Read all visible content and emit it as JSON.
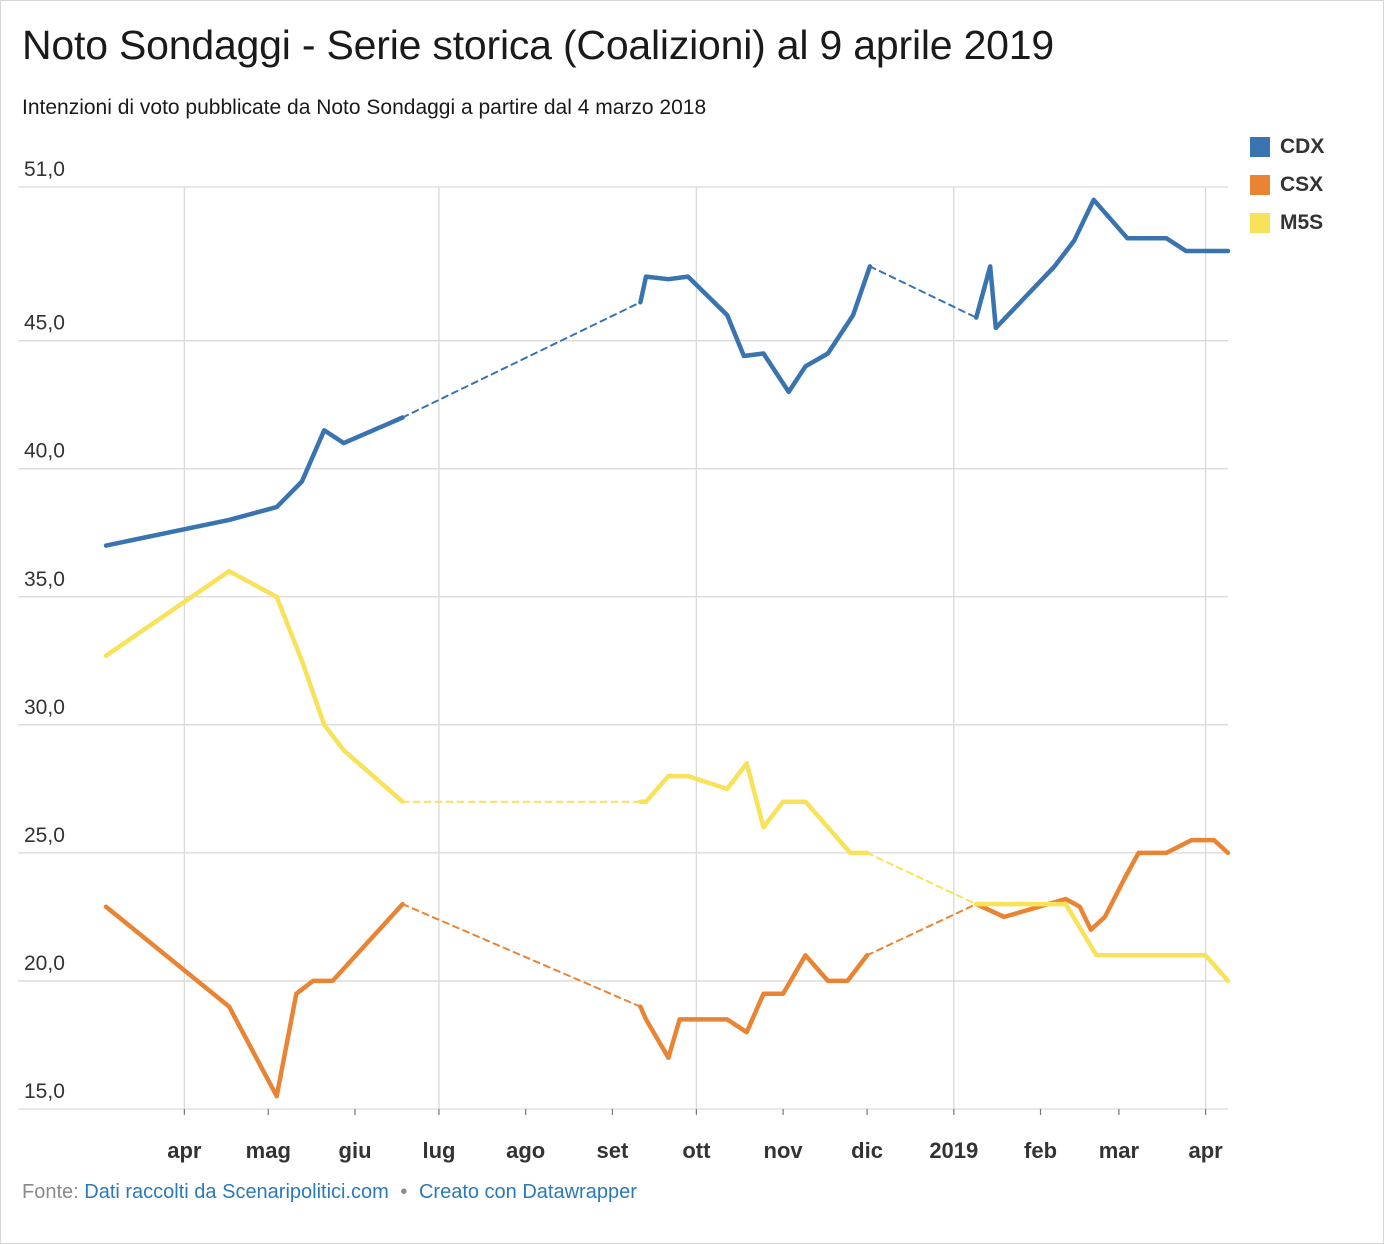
{
  "header": {
    "title": "Noto Sondaggi - Serie storica (Coalizioni) al 9 aprile 2019",
    "subtitle": "Intenzioni di voto pubblicate da Noto Sondaggi a partire dal 4 marzo 2018"
  },
  "footer": {
    "source_prefix": "Fonte:",
    "source_link": "Dati raccolti da Scenaripolitici.com",
    "separator": "•",
    "made_with_link": "Creato con Datawrapper"
  },
  "legend": [
    {
      "label": "CDX",
      "color": "#3a74b0"
    },
    {
      "label": "CSX",
      "color": "#ea8435"
    },
    {
      "label": "M5S",
      "color": "#f7e25a"
    }
  ],
  "chart_data": {
    "type": "line",
    "title": "Noto Sondaggi - Serie storica (Coalizioni) al 9 aprile 2019",
    "xlabel": "",
    "ylabel": "",
    "x_range": [
      "2018-03-04",
      "2019-04-09"
    ],
    "ylim": [
      15,
      51
    ],
    "y_ticks": [
      15,
      20,
      25,
      30,
      35,
      40,
      45,
      51
    ],
    "y_tick_labels": [
      "15,0",
      "20,0",
      "25,0",
      "30,0",
      "35,0",
      "40,0",
      "45,0",
      "51,0"
    ],
    "x_ticks": [
      {
        "label": "apr",
        "date": "2018-04-01"
      },
      {
        "label": "mag",
        "date": "2018-05-01"
      },
      {
        "label": "giu",
        "date": "2018-06-01"
      },
      {
        "label": "lug",
        "date": "2018-07-01"
      },
      {
        "label": "ago",
        "date": "2018-08-01"
      },
      {
        "label": "set",
        "date": "2018-09-01"
      },
      {
        "label": "ott",
        "date": "2018-10-01"
      },
      {
        "label": "nov",
        "date": "2018-11-01"
      },
      {
        "label": "dic",
        "date": "2018-12-01"
      },
      {
        "label": "2019",
        "date": "2019-01-01"
      },
      {
        "label": "feb",
        "date": "2019-02-01"
      },
      {
        "label": "mar",
        "date": "2019-03-01"
      },
      {
        "label": "apr",
        "date": "2019-04-01"
      }
    ],
    "grid": true,
    "legend_position": "top-right",
    "series": [
      {
        "name": "CDX",
        "color": "#3a74b0",
        "points": [
          [
            "2018-03-04",
            37
          ],
          [
            "2018-04-17",
            38
          ],
          [
            "2018-05-04",
            38.5
          ],
          [
            "2018-05-13",
            39.5
          ],
          [
            "2018-05-21",
            41.5
          ],
          [
            "2018-05-28",
            41
          ],
          [
            "2018-06-18",
            42
          ],
          [
            "2018-09-11",
            46.5
          ],
          [
            "2018-09-13",
            47.5
          ],
          [
            "2018-09-21",
            47.4
          ],
          [
            "2018-09-28",
            47.5
          ],
          [
            "2018-10-12",
            46
          ],
          [
            "2018-10-18",
            44.4
          ],
          [
            "2018-10-25",
            44.5
          ],
          [
            "2018-11-03",
            43
          ],
          [
            "2018-11-09",
            44
          ],
          [
            "2018-11-17",
            44.5
          ],
          [
            "2018-11-26",
            46
          ],
          [
            "2018-12-02",
            47.9
          ],
          [
            "2019-01-09",
            45.9
          ],
          [
            "2019-01-14",
            47.9
          ],
          [
            "2019-01-16",
            45.5
          ],
          [
            "2019-02-06",
            47.9
          ],
          [
            "2019-02-13",
            48.9
          ],
          [
            "2019-02-20",
            50.5
          ],
          [
            "2019-03-04",
            49
          ],
          [
            "2019-03-18",
            49
          ],
          [
            "2019-03-25",
            48.5
          ],
          [
            "2019-04-09",
            48.5
          ]
        ],
        "dashed_gaps": [
          [
            "2018-06-18",
            "2018-09-11"
          ],
          [
            "2018-12-02",
            "2019-01-09"
          ]
        ]
      },
      {
        "name": "CSX",
        "color": "#ea8435",
        "points": [
          [
            "2018-03-04",
            22.9
          ],
          [
            "2018-04-17",
            19
          ],
          [
            "2018-05-04",
            15.5
          ],
          [
            "2018-05-11",
            19.5
          ],
          [
            "2018-05-17",
            20
          ],
          [
            "2018-05-24",
            20
          ],
          [
            "2018-06-18",
            23
          ],
          [
            "2018-09-11",
            19
          ],
          [
            "2018-09-13",
            18.5
          ],
          [
            "2018-09-21",
            17
          ],
          [
            "2018-09-25",
            18.5
          ],
          [
            "2018-10-12",
            18.5
          ],
          [
            "2018-10-19",
            18
          ],
          [
            "2018-10-25",
            19.5
          ],
          [
            "2018-11-01",
            19.5
          ],
          [
            "2018-11-09",
            21
          ],
          [
            "2018-11-17",
            20
          ],
          [
            "2018-11-24",
            20
          ],
          [
            "2018-12-01",
            21
          ],
          [
            "2019-01-09",
            23
          ],
          [
            "2019-01-19",
            22.5
          ],
          [
            "2019-02-10",
            23.2
          ],
          [
            "2019-02-15",
            22.9
          ],
          [
            "2019-02-19",
            22
          ],
          [
            "2019-02-24",
            22.5
          ],
          [
            "2019-03-03",
            24
          ],
          [
            "2019-03-08",
            25
          ],
          [
            "2019-03-18",
            25
          ],
          [
            "2019-03-27",
            25.5
          ],
          [
            "2019-04-04",
            25.5
          ],
          [
            "2019-04-09",
            25
          ]
        ],
        "dashed_gaps": [
          [
            "2018-06-18",
            "2018-09-11"
          ],
          [
            "2018-12-01",
            "2019-01-09"
          ]
        ]
      },
      {
        "name": "M5S",
        "color": "#f7e25a",
        "points": [
          [
            "2018-03-04",
            32.7
          ],
          [
            "2018-04-17",
            36
          ],
          [
            "2018-05-04",
            35
          ],
          [
            "2018-05-13",
            32.5
          ],
          [
            "2018-05-21",
            30
          ],
          [
            "2018-05-28",
            29
          ],
          [
            "2018-06-18",
            27
          ],
          [
            "2018-09-11",
            27
          ],
          [
            "2018-09-13",
            27
          ],
          [
            "2018-09-21",
            28
          ],
          [
            "2018-09-28",
            28
          ],
          [
            "2018-10-12",
            27.5
          ],
          [
            "2018-10-19",
            28.5
          ],
          [
            "2018-10-25",
            26
          ],
          [
            "2018-11-01",
            27
          ],
          [
            "2018-11-09",
            27
          ],
          [
            "2018-11-25",
            25
          ],
          [
            "2018-12-01",
            25
          ],
          [
            "2019-01-09",
            23
          ],
          [
            "2019-01-19",
            23
          ],
          [
            "2019-02-10",
            23
          ],
          [
            "2019-02-21",
            21
          ],
          [
            "2019-03-04",
            21
          ],
          [
            "2019-03-18",
            21
          ],
          [
            "2019-04-01",
            21
          ],
          [
            "2019-04-09",
            20
          ]
        ],
        "dashed_gaps": [
          [
            "2018-06-18",
            "2018-09-11"
          ],
          [
            "2018-12-01",
            "2019-01-09"
          ]
        ]
      }
    ]
  }
}
